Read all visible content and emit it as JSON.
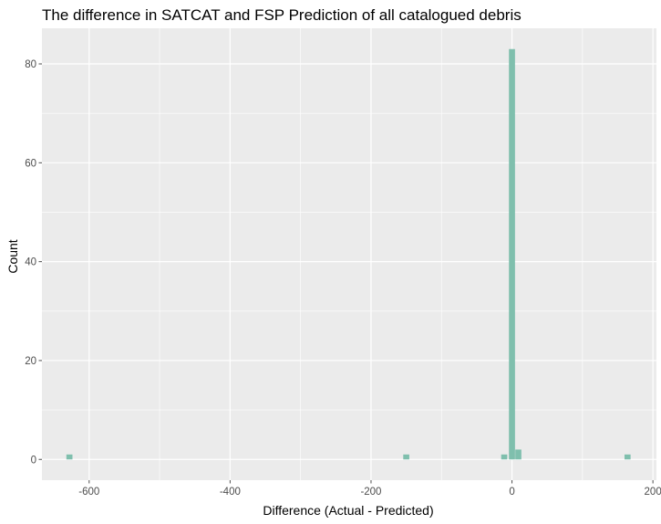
{
  "chart_data": {
    "type": "bar",
    "title": "The difference in SATCAT and FSP Prediction of all catalogued debris",
    "xlabel": "Difference (Actual - Predicted)",
    "ylabel": "Count",
    "xlim": [
      -667,
      205
    ],
    "ylim": [
      -4.2,
      87.2
    ],
    "x_ticks": [
      -600,
      -400,
      -200,
      0,
      200
    ],
    "x_tick_labels": [
      "-600",
      "-400",
      "-200",
      "0",
      "200"
    ],
    "y_ticks": [
      0,
      20,
      40,
      60,
      80
    ],
    "y_tick_labels": [
      "0",
      "20",
      "40",
      "60",
      "80"
    ],
    "grid": true,
    "bin_width": 8.6,
    "bins": [
      {
        "x": -628,
        "count": 1
      },
      {
        "x": -150,
        "count": 1
      },
      {
        "x": -11,
        "count": 1
      },
      {
        "x": 0,
        "count": 83
      },
      {
        "x": 9,
        "count": 2
      },
      {
        "x": 164,
        "count": 1
      }
    ],
    "colors": {
      "bar": "#7fbfad",
      "panel": "#ebebeb",
      "grid": "#ffffff",
      "tick": "#4d4d4d"
    }
  }
}
